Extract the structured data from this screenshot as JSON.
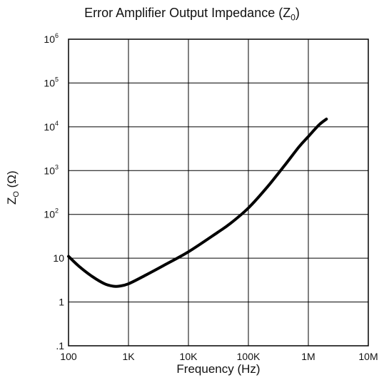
{
  "chart_data": {
    "type": "line",
    "title": {
      "text": "Error Amplifier Output Impedance (Z",
      "sub": "0",
      "end": ")"
    },
    "xlabel": "Frequency (Hz)",
    "ylabel": {
      "text": "Z",
      "sub": "O",
      "end": " (Ω)"
    },
    "x_scale": "log",
    "y_scale": "log",
    "xlim": [
      100,
      10000000
    ],
    "ylim": [
      0.1,
      1000000
    ],
    "grid": true,
    "x_ticks": [
      {
        "value": 100,
        "label": "100"
      },
      {
        "value": 1000,
        "label": "1K"
      },
      {
        "value": 10000,
        "label": "10K"
      },
      {
        "value": 100000,
        "label": "100K"
      },
      {
        "value": 1000000,
        "label": "1M"
      },
      {
        "value": 10000000,
        "label": "10M"
      }
    ],
    "y_ticks": [
      {
        "value": 0.1,
        "label": ".1"
      },
      {
        "value": 1,
        "label": "1"
      },
      {
        "value": 10,
        "label": "10"
      },
      {
        "value": 100,
        "label": "10",
        "sup": "2"
      },
      {
        "value": 1000,
        "label": "10",
        "sup": "3"
      },
      {
        "value": 10000,
        "label": "10",
        "sup": "4"
      },
      {
        "value": 100000,
        "label": "10",
        "sup": "5"
      },
      {
        "value": 1000000,
        "label": "10",
        "sup": "6"
      }
    ],
    "series": [
      {
        "color": "#000000",
        "x": [
          100,
          150,
          250,
          400,
          550,
          700,
          1000,
          2000,
          4000,
          10000,
          30000,
          50000,
          100000,
          200000,
          400000,
          700000,
          1000000,
          1500000,
          2000000
        ],
        "y": [
          11,
          6.5,
          3.8,
          2.6,
          2.3,
          2.3,
          2.6,
          4.2,
          7,
          14,
          38,
          62,
          140,
          400,
          1300,
          3500,
          6000,
          11000,
          15000
        ]
      }
    ]
  }
}
